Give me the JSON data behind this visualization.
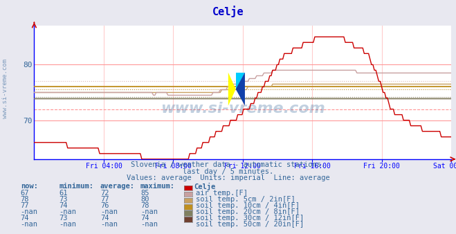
{
  "title": "Celje",
  "title_color": "#0000cc",
  "bg_color": "#e8e8f0",
  "plot_bg_color": "#ffffff",
  "watermark_text": "www.si-vreme.com",
  "subtitle_lines": [
    "Slovenia / weather data - automatic stations.",
    "last day / 5 minutes.",
    "Values: average  Units: imperial  Line: average"
  ],
  "x_labels": [
    "Fri 04:00",
    "Fri 08:00",
    "Fri 12:00",
    "Fri 16:00",
    "Fri 20:00",
    "Sat 00:00"
  ],
  "x_tick_pos": [
    0.1667,
    0.3333,
    0.5,
    0.6667,
    0.8333,
    1.0
  ],
  "y_ticks": [
    70,
    80
  ],
  "ylim": [
    63,
    87
  ],
  "xlim": [
    0,
    1
  ],
  "avg_lines": [
    72,
    77,
    76,
    75.5,
    74.2,
    74.0
  ],
  "avg_colors": [
    "#ff8888",
    "#d4b0b0",
    "#c8a060",
    "#b08020",
    "#909070",
    "#705030"
  ],
  "avg_styles": [
    "--",
    ":",
    ":",
    ":",
    ":",
    ":"
  ],
  "legend_colors": [
    "#cc0000",
    "#c8a0a0",
    "#c8a060",
    "#c09020",
    "#808060",
    "#704030"
  ],
  "legend_labels": [
    "air temp.[F]",
    "soil temp. 5cm / 2in[F]",
    "soil temp. 10cm / 4in[F]",
    "soil temp. 20cm / 8in[F]",
    "soil temp. 30cm / 12in[F]",
    "soil temp. 50cm / 20in[F]"
  ],
  "legend_now": [
    "67",
    "78",
    "77",
    "-nan",
    "74",
    "-nan"
  ],
  "legend_min": [
    "61",
    "73",
    "74",
    "-nan",
    "73",
    "-nan"
  ],
  "legend_avg": [
    "72",
    "77",
    "76",
    "-nan",
    "74",
    "-nan"
  ],
  "legend_max": [
    "85",
    "80",
    "78",
    "-nan",
    "74",
    "-nan"
  ],
  "text_color": "#336699",
  "axis_color": "#0000ff",
  "grid_color": "#ff9999",
  "vgrid_color": "#ffcccc"
}
